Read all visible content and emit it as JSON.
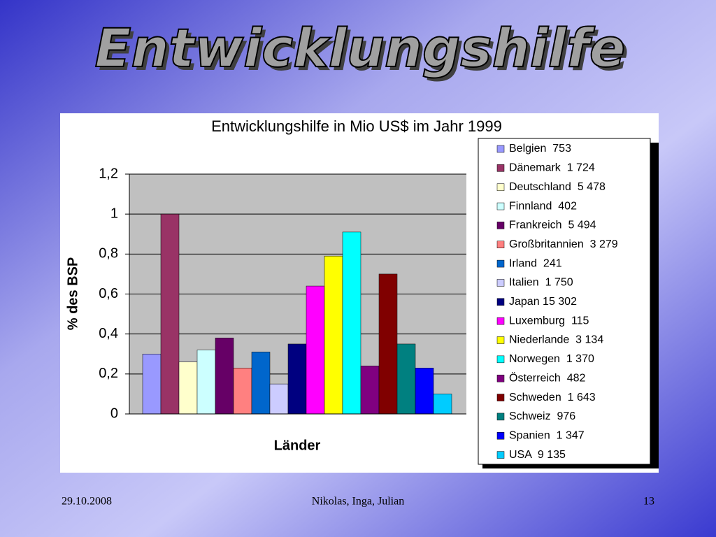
{
  "slide": {
    "title": "Entwicklungshilfe",
    "footer_date": "29.10.2008",
    "footer_authors": "Nikolas, Inga, Julian",
    "page_number": "13"
  },
  "chart_data": {
    "type": "bar",
    "title": "Entwicklungshilfe in Mio US$ im Jahr 1999",
    "y_label": "% des BSP",
    "x_label": "Länder",
    "categories": [
      "Belgien  753",
      "Dänemark  1 724",
      "Deutschland  5 478",
      "Finnland  402",
      "Frankreich  5 494",
      "Großbritannien  3 279",
      "Irland  241",
      "Italien  1 750",
      "Japan 15 302",
      "Luxemburg  115",
      "Niederlande  3 134",
      "Norwegen  1 370",
      "Österreich  482",
      "Schweden  1 643",
      "Schweiz  976",
      "Spanien  1 347",
      "USA  9 135"
    ],
    "values": [
      0.3,
      1.0,
      0.26,
      0.32,
      0.38,
      0.23,
      0.31,
      0.15,
      0.35,
      0.64,
      0.79,
      0.91,
      0.24,
      0.7,
      0.35,
      0.23,
      0.1
    ],
    "colors": [
      "#9999ff",
      "#993366",
      "#ffffcc",
      "#ccffff",
      "#660066",
      "#ff8080",
      "#0066cc",
      "#ccccff",
      "#000080",
      "#ff00ff",
      "#ffff00",
      "#00ffff",
      "#800080",
      "#800000",
      "#008080",
      "#0000ff",
      "#00ccff"
    ],
    "ylim": [
      0,
      1.2
    ],
    "yticks": [
      0,
      {
        "value": 0.2,
        "label": "0,2"
      },
      {
        "value": 0.4,
        "label": "0,4"
      },
      {
        "value": 0.6,
        "label": "0,6"
      },
      {
        "value": 0.8,
        "label": "0,8"
      },
      1,
      {
        "value": 1.2,
        "label": "1,2"
      }
    ],
    "grid": true,
    "legend": "right"
  }
}
